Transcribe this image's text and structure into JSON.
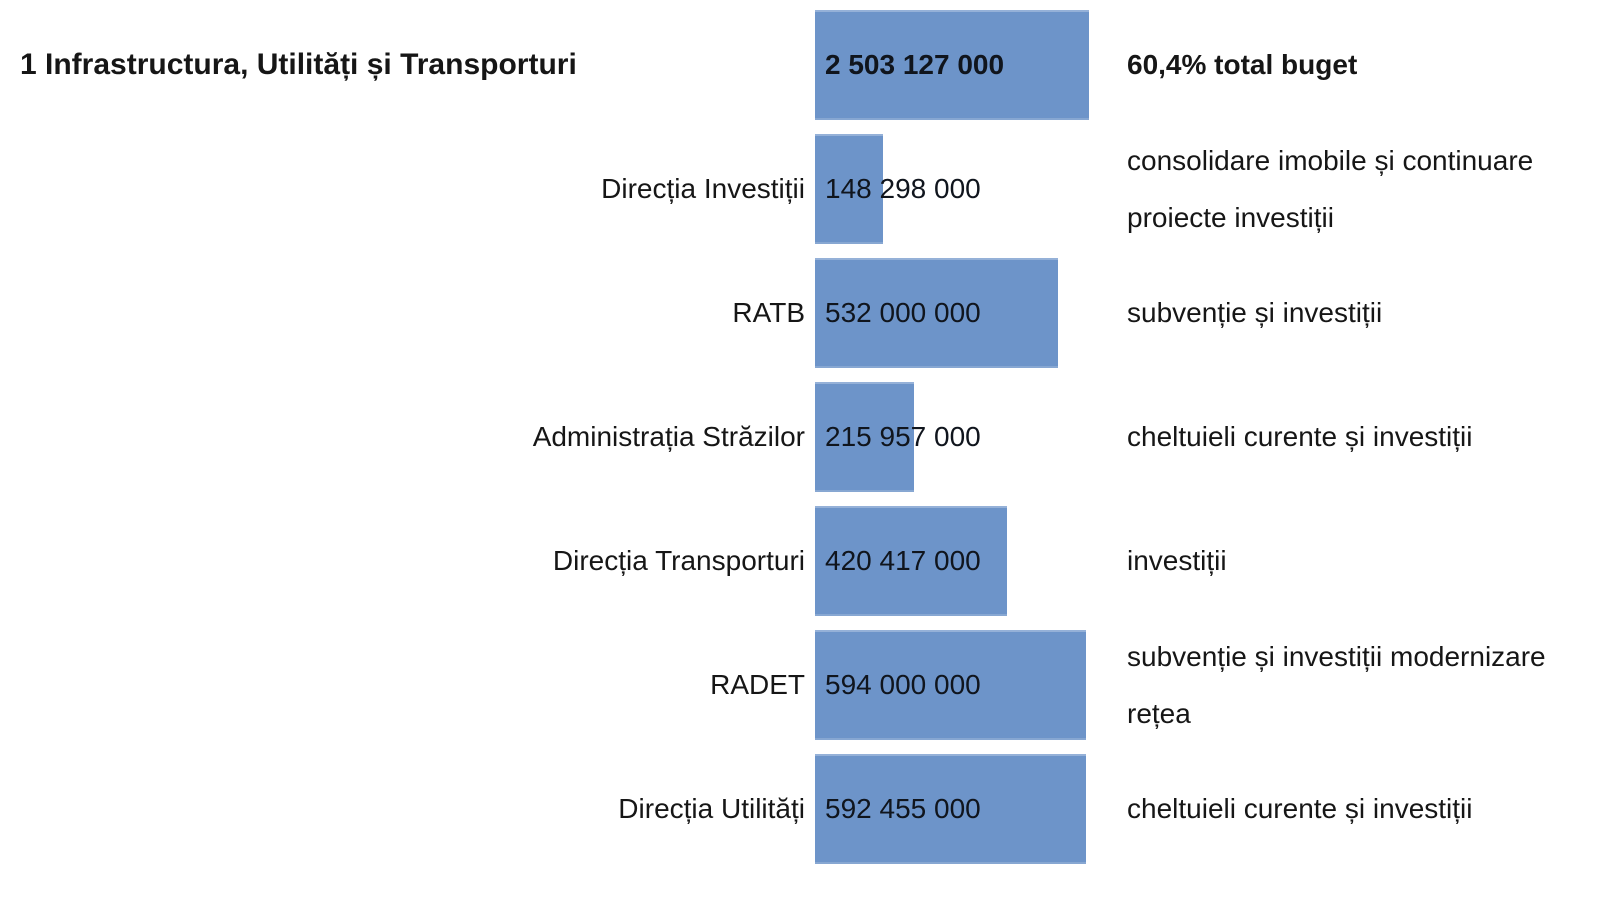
{
  "chart_data": {
    "type": "bar",
    "orientation": "horizontal",
    "title": "1 Infrastructura, Utilități și Transporturi",
    "xlabel": "",
    "ylabel": "",
    "axis_max": 600000000,
    "bar_color": "#6D94C9",
    "grid": false,
    "legend": false,
    "rows": [
      {
        "label": "1 Infrastructura, Utilități și Transporturi",
        "value": 2503127000,
        "value_text": "2 503 127 000",
        "note": "60,4% total buget"
      },
      {
        "label": "Direcția Investiții",
        "value": 148298000,
        "value_text": "148 298 000",
        "note": "consolidare imobile și continuare proiecte investiții"
      },
      {
        "label": "RATB",
        "value": 532000000,
        "value_text": "532 000 000",
        "note": "subvenție și investiții"
      },
      {
        "label": "Administrația Străzilor",
        "value": 215957000,
        "value_text": "215 957 000",
        "note": "cheltuieli curente și investiții"
      },
      {
        "label": "Direcția Transporturi",
        "value": 420417000,
        "value_text": "420 417 000",
        "note": "investiții"
      },
      {
        "label": "RADET",
        "value": 594000000,
        "value_text": "594 000 000",
        "note": "subvenție și investiții modernizare rețea"
      },
      {
        "label": "Direcția Utilități",
        "value": 592455000,
        "value_text": "592 455 000",
        "note": "cheltuieli curente și investiții"
      }
    ]
  }
}
